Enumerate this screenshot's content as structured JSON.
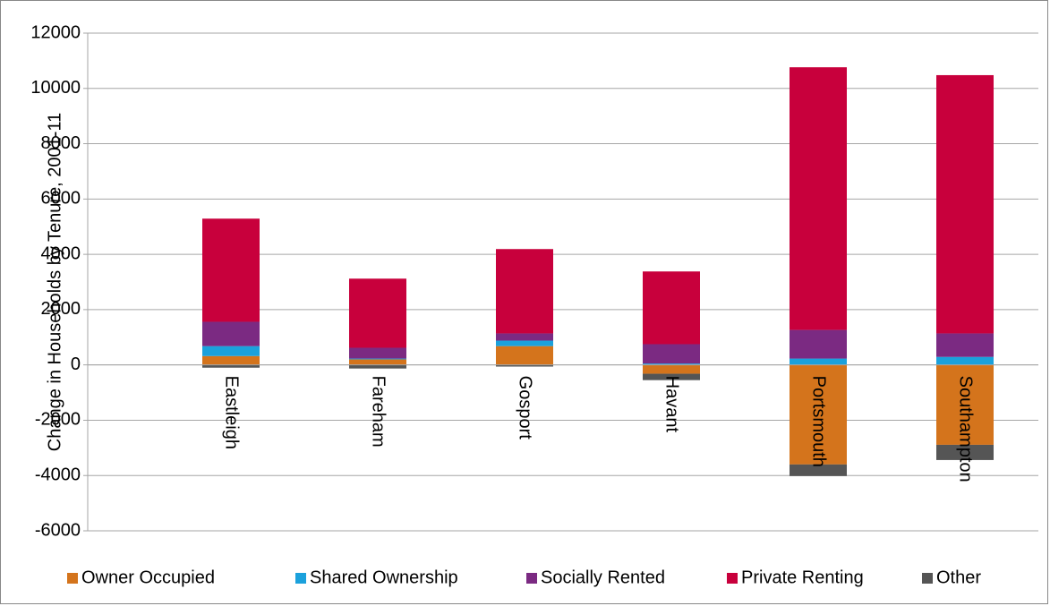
{
  "chart_data": {
    "type": "bar",
    "stacked": true,
    "y_label": "Change in Households by Tenure, 2001-11",
    "categories": [
      "Eastleigh",
      "Fareham",
      "Gosport",
      "Havant",
      "Portsmouth",
      "Southampton"
    ],
    "series": [
      {
        "name": "Owner Occupied",
        "color": "#d4741c",
        "values": [
          320,
          200,
          680,
          -320,
          -3600,
          -2890
        ]
      },
      {
        "name": "Shared Ownership",
        "color": "#1ba1dc",
        "values": [
          360,
          30,
          200,
          50,
          230,
          290
        ]
      },
      {
        "name": "Socially Rented",
        "color": "#7b2a82",
        "values": [
          880,
          390,
          260,
          700,
          1035,
          850
        ]
      },
      {
        "name": "Private Renting",
        "color": "#c8003c",
        "values": [
          3730,
          2500,
          3050,
          2630,
          9500,
          9340
        ]
      },
      {
        "name": "Other",
        "color": "#555555",
        "values": [
          -100,
          -130,
          -60,
          -230,
          -420,
          -550
        ]
      }
    ],
    "ylim": [
      -6000,
      12000
    ],
    "yticks": [
      -6000,
      -4000,
      -2000,
      0,
      2000,
      4000,
      6000,
      8000,
      10000,
      12000
    ],
    "grid": true,
    "legend": "bottom"
  }
}
